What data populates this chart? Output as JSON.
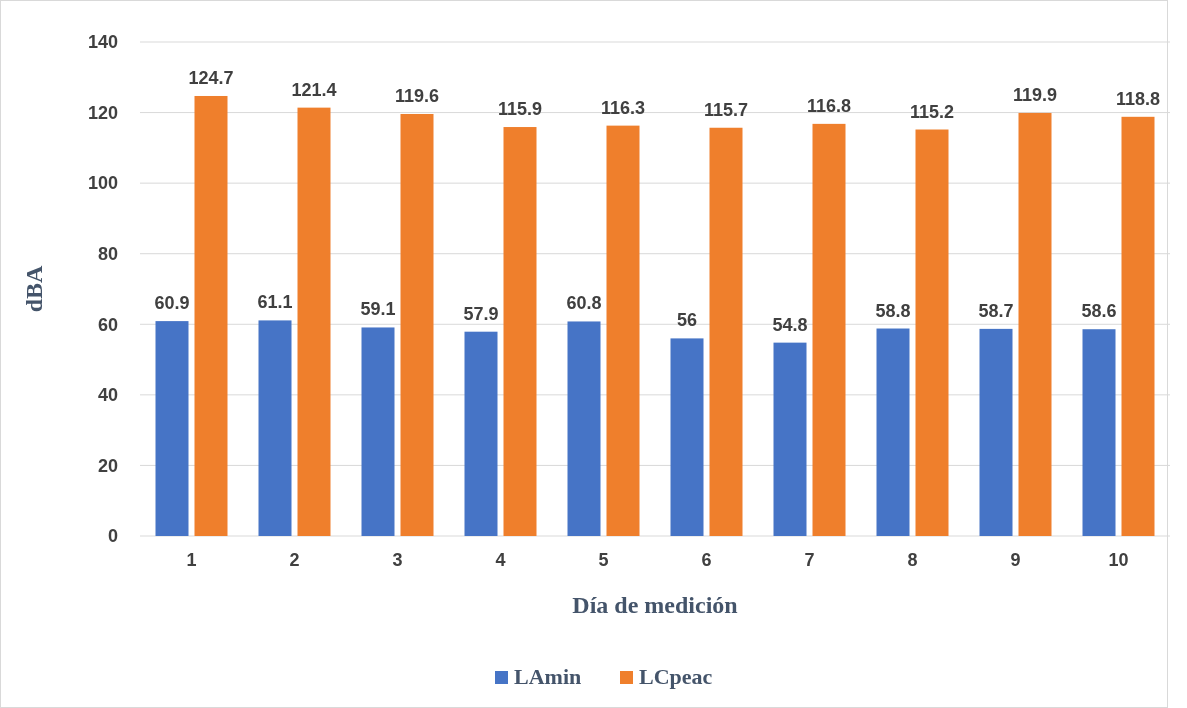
{
  "chart_data": {
    "type": "bar",
    "categories": [
      "1",
      "2",
      "3",
      "4",
      "5",
      "6",
      "7",
      "8",
      "9",
      "10"
    ],
    "series": [
      {
        "name": "LAmin",
        "color": "#4674c6",
        "values": [
          60.9,
          61.1,
          59.1,
          57.9,
          60.8,
          56,
          54.8,
          58.8,
          58.7,
          58.6
        ]
      },
      {
        "name": "LCpeac",
        "color": "#ef7f2c",
        "values": [
          124.7,
          121.4,
          119.6,
          115.9,
          116.3,
          115.7,
          116.8,
          115.2,
          119.9,
          118.8
        ]
      }
    ],
    "xlabel": "Día de medición",
    "ylabel": "dBA",
    "ylim": [
      0,
      140
    ],
    "yticks": [
      0,
      20,
      40,
      60,
      80,
      100,
      120,
      140
    ],
    "grid": "y",
    "legend": "bottom",
    "data_labels": true
  }
}
